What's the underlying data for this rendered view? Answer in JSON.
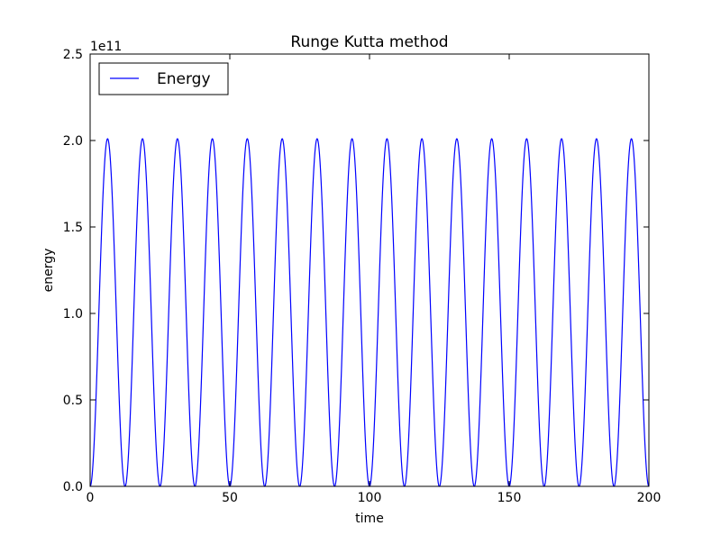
{
  "chart_data": {
    "type": "line",
    "title": "Runge Kutta method",
    "xlabel": "time",
    "ylabel": "energy",
    "y_offset_label": "1e11",
    "xlim": [
      0,
      200
    ],
    "ylim": [
      0,
      2.5
    ],
    "y_scale_multiplier": 100000000000.0,
    "x_ticks": [
      0,
      50,
      100,
      150,
      200
    ],
    "x_tick_labels": [
      "0",
      "50",
      "100",
      "150",
      "200"
    ],
    "y_ticks": [
      0,
      0.5,
      1.0,
      1.5,
      2.0,
      2.5
    ],
    "y_tick_labels": [
      "0.0",
      "0.5",
      "1.0",
      "1.5",
      "2.0",
      "2.5"
    ],
    "grid": false,
    "legend_position": "top-left",
    "series": [
      {
        "name": "Energy",
        "color": "#0000ff",
        "formula": "A * sin^2(pi * t / P)",
        "amplitude": 2.01,
        "period": 12.5,
        "x_start": 0,
        "x_end": 200,
        "peaks": [
          [
            6.25,
            2.01
          ],
          [
            18.75,
            2.01
          ],
          [
            31.25,
            2.01
          ],
          [
            43.75,
            2.01
          ],
          [
            56.25,
            2.01
          ],
          [
            68.75,
            2.01
          ],
          [
            81.25,
            2.01
          ],
          [
            93.75,
            2.01
          ],
          [
            106.25,
            2.01
          ],
          [
            118.75,
            2.01
          ],
          [
            131.25,
            2.01
          ],
          [
            143.75,
            2.01
          ],
          [
            156.25,
            2.01
          ],
          [
            168.75,
            2.01
          ],
          [
            181.25,
            2.01
          ],
          [
            193.75,
            2.01
          ]
        ],
        "troughs": [
          [
            0,
            0
          ],
          [
            12.5,
            0
          ],
          [
            25,
            0
          ],
          [
            37.5,
            0
          ],
          [
            50,
            0
          ],
          [
            62.5,
            0
          ],
          [
            75,
            0
          ],
          [
            87.5,
            0
          ],
          [
            100,
            0
          ],
          [
            112.5,
            0
          ],
          [
            125,
            0
          ],
          [
            137.5,
            0
          ],
          [
            150,
            0
          ],
          [
            162.5,
            0
          ],
          [
            175,
            0
          ],
          [
            187.5,
            0
          ],
          [
            200,
            0
          ]
        ]
      }
    ]
  }
}
